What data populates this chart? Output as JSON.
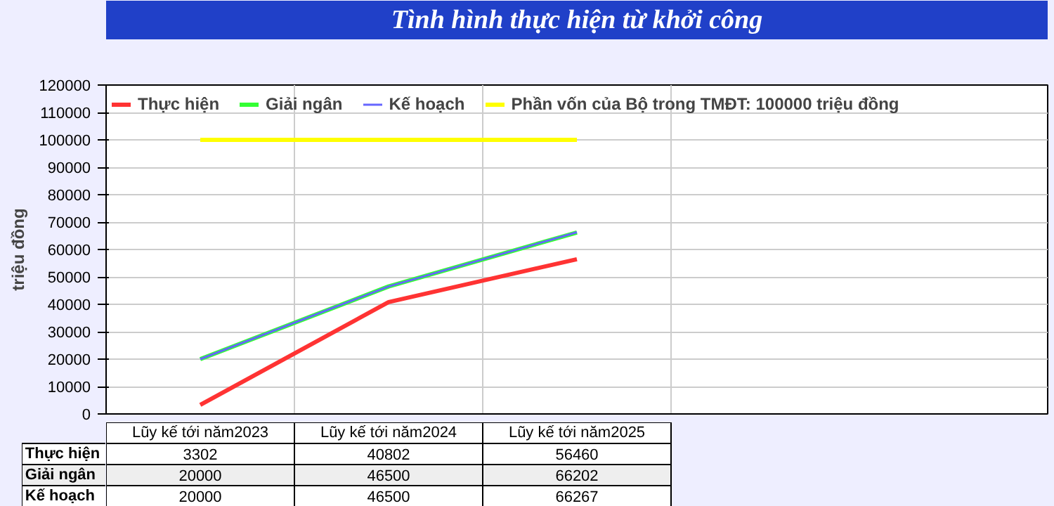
{
  "chart_data": {
    "type": "line",
    "title": "Tình hình thực hiện từ khởi công",
    "ylabel": "triệu đồng",
    "categories": [
      "Lũy kế tới năm2023",
      "Lũy kế tới năm2024",
      "Lũy kế tới năm2025"
    ],
    "series": [
      {
        "name": "Thực hiện",
        "color": "#ff3333",
        "values": [
          3302,
          40802,
          56460
        ]
      },
      {
        "name": "Giải ngân",
        "color": "#33ff33",
        "values": [
          20000,
          46500,
          66202
        ]
      },
      {
        "name": "Kế hoạch",
        "color": "#6666ff",
        "values": [
          20000,
          46500,
          66267
        ]
      }
    ],
    "ref_lines": [
      {
        "axis": "y",
        "value": 100000,
        "label": "Phần vốn của Bộ trong TMĐT: 100000 triệu đồng",
        "color": "#ffff00"
      }
    ],
    "ylim": [
      0,
      120000
    ],
    "yticks": [
      0,
      10000,
      20000,
      30000,
      40000,
      50000,
      60000,
      70000,
      80000,
      90000,
      100000,
      110000,
      120000
    ],
    "grid": true,
    "legend": "top",
    "data_labels": true
  }
}
